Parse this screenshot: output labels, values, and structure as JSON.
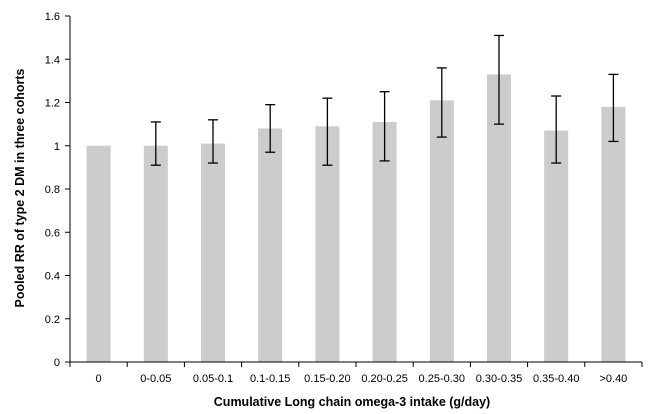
{
  "chart_data": {
    "type": "bar",
    "title": "",
    "xlabel": "Cumulative Long chain omega-3 intake (g/day)",
    "ylabel": "Pooled RR of type 2 DM in three cohorts",
    "categories": [
      "0",
      "0-0.05",
      "0.05-0.1",
      "0.1-0.15",
      "0.15-0.20",
      "0.20-0.25",
      "0.25-0.30",
      "0.30-0.35",
      "0.35-0.40",
      ">0.40"
    ],
    "values": [
      1.0,
      1.0,
      1.01,
      1.08,
      1.09,
      1.11,
      1.21,
      1.33,
      1.07,
      1.18
    ],
    "error_low": [
      null,
      0.91,
      0.92,
      0.97,
      0.91,
      0.93,
      1.04,
      1.1,
      0.92,
      1.02
    ],
    "error_high": [
      null,
      1.11,
      1.12,
      1.19,
      1.22,
      1.25,
      1.36,
      1.51,
      1.23,
      1.33
    ],
    "ylim": [
      0,
      1.6
    ],
    "yticks": [
      "0",
      "0.2",
      "0.4",
      "0.6",
      "0.8",
      "1",
      "1.2",
      "1.4",
      "1.6"
    ],
    "ytick_values": [
      0,
      0.2,
      0.4,
      0.6,
      0.8,
      1.0,
      1.2,
      1.4,
      1.6
    ],
    "bar_color": "#cccccc",
    "errorbar_color": "#000000",
    "grid": false,
    "legend": "none"
  }
}
